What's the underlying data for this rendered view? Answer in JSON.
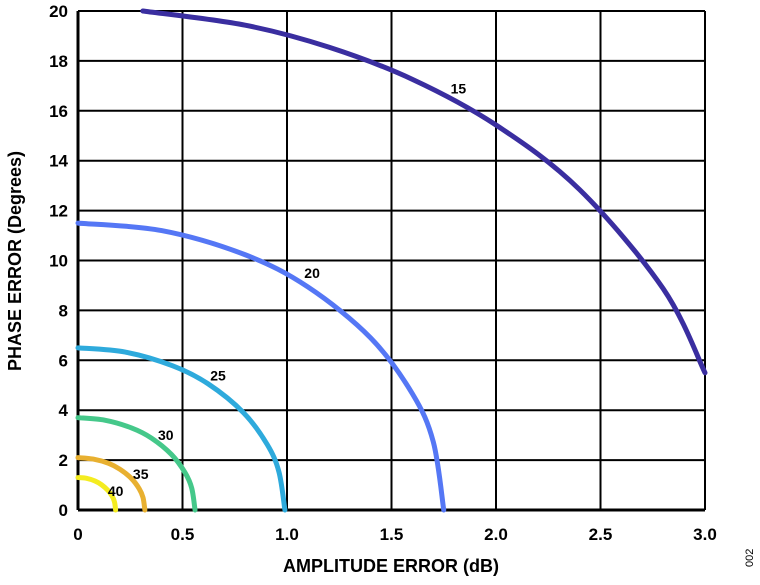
{
  "chart_data": {
    "type": "line",
    "title": "",
    "xlabel": "AMPLITUDE ERROR (dB)",
    "ylabel": "PHASE ERROR (Degrees)",
    "xlim": [
      0,
      3.0
    ],
    "ylim": [
      0,
      20
    ],
    "xticks": [
      0,
      0.5,
      1.0,
      1.5,
      2.0,
      2.5,
      3.0
    ],
    "xtick_labels": [
      "0",
      "0.5",
      "1.0",
      "1.5",
      "2.0",
      "2.5",
      "3.0"
    ],
    "yticks": [
      0,
      2,
      4,
      6,
      8,
      10,
      12,
      14,
      16,
      18,
      20
    ],
    "ytick_labels": [
      "0",
      "2",
      "4",
      "6",
      "8",
      "10",
      "12",
      "14",
      "16",
      "18",
      "20"
    ],
    "grid": true,
    "figure_id": "002",
    "series": [
      {
        "name": "15",
        "color": "#3a2ea0",
        "label_at": [
          1.82,
          16.9
        ],
        "x": [
          0.31,
          0.8,
          1.2,
          1.6,
          2.0,
          2.4,
          2.8,
          3.0
        ],
        "y": [
          20.0,
          19.43,
          18.55,
          17.26,
          15.43,
          12.84,
          8.87,
          5.5
        ]
      },
      {
        "name": "20",
        "color": "#5577f5",
        "label_at": [
          1.12,
          9.5
        ],
        "x": [
          0,
          0.4,
          0.8,
          1.1,
          1.4,
          1.6,
          1.7,
          1.75
        ],
        "y": [
          11.5,
          11.2,
          10.23,
          8.94,
          6.9,
          4.66,
          2.73,
          0
        ]
      },
      {
        "name": "25",
        "color": "#2eaadc",
        "label_at": [
          0.67,
          5.4
        ],
        "x": [
          0,
          0.226,
          0.453,
          0.622,
          0.792,
          0.905,
          0.961,
          0.99
        ],
        "y": [
          6.5,
          6.33,
          5.78,
          5.06,
          3.9,
          2.63,
          1.54,
          0
        ]
      },
      {
        "name": "30",
        "color": "#45c88a",
        "label_at": [
          0.42,
          3.0
        ],
        "x": [
          0,
          0.128,
          0.256,
          0.352,
          0.448,
          0.512,
          0.544,
          0.56
        ],
        "y": [
          3.7,
          3.6,
          3.29,
          2.88,
          2.22,
          1.5,
          0.88,
          0
        ]
      },
      {
        "name": "35",
        "color": "#e8b030",
        "label_at": [
          0.3,
          1.45
        ],
        "x": [
          0,
          0.073,
          0.146,
          0.201,
          0.256,
          0.293,
          0.311,
          0.32
        ],
        "y": [
          2.1,
          2.04,
          1.87,
          1.63,
          1.26,
          0.85,
          0.5,
          0
        ]
      },
      {
        "name": "40",
        "color": "#f4ec20",
        "label_at": [
          0.18,
          0.76
        ],
        "x": [
          0,
          0.041,
          0.082,
          0.113,
          0.144,
          0.165,
          0.175,
          0.18
        ],
        "y": [
          1.3,
          1.27,
          1.16,
          1.01,
          0.78,
          0.53,
          0.31,
          0
        ]
      }
    ]
  }
}
